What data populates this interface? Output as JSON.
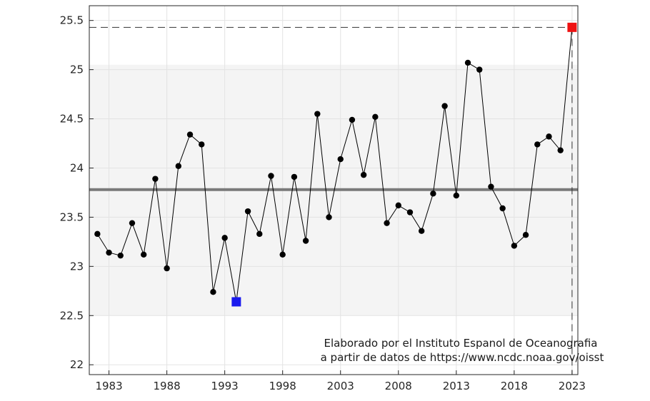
{
  "chart_data": {
    "type": "line",
    "title": "",
    "xlabel": "",
    "ylabel": "",
    "xlim": [
      1981.3,
      2023.5
    ],
    "ylim": [
      21.9,
      25.65
    ],
    "x_ticks": [
      1983,
      1988,
      1993,
      1998,
      2003,
      2008,
      2013,
      2018,
      2023
    ],
    "x_tick_labels": [
      "1983",
      "1988",
      "1993",
      "1998",
      "2003",
      "2008",
      "2013",
      "2018",
      "2023"
    ],
    "y_ticks": [
      22,
      22.5,
      23,
      23.5,
      24,
      24.5,
      25,
      25.5
    ],
    "y_tick_labels": [
      "22",
      "22.5",
      "23",
      "23.5",
      "24",
      "24.5",
      "25",
      "25.5"
    ],
    "grid": true,
    "series": [
      {
        "x": [
          1982,
          1983,
          1984,
          1985,
          1986,
          1987,
          1988,
          1989,
          1990,
          1991,
          1992,
          1993,
          1994,
          1995,
          1996,
          1997,
          1998,
          1999,
          2000,
          2001,
          2002,
          2003,
          2004,
          2005,
          2006,
          2007,
          2008,
          2009,
          2010,
          2011,
          2012,
          2013,
          2014,
          2015,
          2016,
          2017,
          2018,
          2019,
          2020,
          2021,
          2022,
          2023
        ],
        "values": [
          23.33,
          23.14,
          23.11,
          23.44,
          23.12,
          23.89,
          22.98,
          24.02,
          24.34,
          24.24,
          22.74,
          23.29,
          22.64,
          23.56,
          23.33,
          23.92,
          23.12,
          23.91,
          23.26,
          24.55,
          23.5,
          24.09,
          24.49,
          23.93,
          24.52,
          23.44,
          23.62,
          23.55,
          23.36,
          23.74,
          24.63,
          23.72,
          25.07,
          25.0,
          23.81,
          23.59,
          23.21,
          23.32,
          24.24,
          24.32,
          24.18,
          25.43
        ],
        "color": "#000000",
        "marker": "circle"
      }
    ],
    "mean_line": {
      "value": 23.78,
      "color": "#7a7a7a"
    },
    "shaded_band": {
      "from": 22.5,
      "to": 25.05,
      "color": "#f4f4f4"
    },
    "min_point": {
      "x": 1994,
      "value": 22.64,
      "color": "#1a1aee",
      "marker": "square"
    },
    "max_point": {
      "x": 2023,
      "value": 25.43,
      "color": "#ee1111",
      "marker": "square"
    },
    "annotation": {
      "line1": "Elaborado por el Instituto Espanol de Oceanografia",
      "line2": "a partir de datos de https://www.ncdc.noaa.gov/oisst"
    }
  }
}
